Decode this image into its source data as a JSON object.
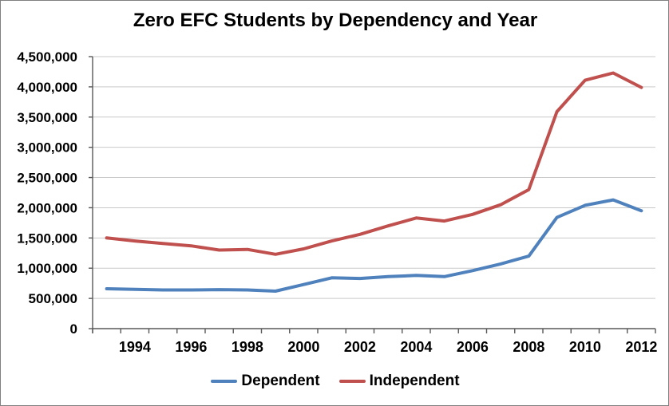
{
  "title": "Zero EFC Students by Dependency and Year",
  "colors": {
    "dependent_line": "#4F81BD",
    "independent_line": "#C0504D",
    "gridline": "#C9C9C9",
    "axis": "#595959",
    "label_text": "#000000",
    "frame_border": "#808080"
  },
  "legend": {
    "items": [
      {
        "label": "Dependent",
        "color": "#4F81BD"
      },
      {
        "label": "Independent",
        "color": "#C0504D"
      }
    ]
  },
  "y_axis": {
    "tick_labels": [
      "4,500,000",
      "4,000,000",
      "3,500,000",
      "3,000,000",
      "2,500,000",
      "2,000,000",
      "1,500,000",
      "1,000,000",
      "500,000",
      "0"
    ]
  },
  "x_axis": {
    "tick_labels": [
      "1994",
      "1996",
      "1998",
      "2000",
      "2002",
      "2004",
      "2006",
      "2008",
      "2010",
      "2012"
    ]
  },
  "chart_data": {
    "type": "line",
    "title": "Zero EFC Students by Dependency and Year",
    "x": [
      1993,
      1994,
      1995,
      1996,
      1997,
      1998,
      1999,
      2000,
      2001,
      2002,
      2003,
      2004,
      2005,
      2006,
      2007,
      2008,
      2009,
      2010,
      2011,
      2012
    ],
    "series": [
      {
        "name": "Dependent",
        "color": "#4F81BD",
        "values": [
          660000,
          650000,
          640000,
          640000,
          645000,
          640000,
          620000,
          730000,
          840000,
          830000,
          860000,
          880000,
          860000,
          960000,
          1070000,
          1200000,
          1840000,
          2040000,
          2130000,
          1950000
        ]
      },
      {
        "name": "Independent",
        "color": "#C0504D",
        "values": [
          1500000,
          1450000,
          1410000,
          1370000,
          1300000,
          1310000,
          1230000,
          1320000,
          1450000,
          1560000,
          1700000,
          1830000,
          1780000,
          1890000,
          2050000,
          2300000,
          3590000,
          4110000,
          4230000,
          3990000
        ]
      }
    ],
    "ylim": [
      0,
      4500000
    ],
    "ytick_step": 500000,
    "grid": true,
    "legend_position": "bottom",
    "x_labels_shown_every": 2
  }
}
